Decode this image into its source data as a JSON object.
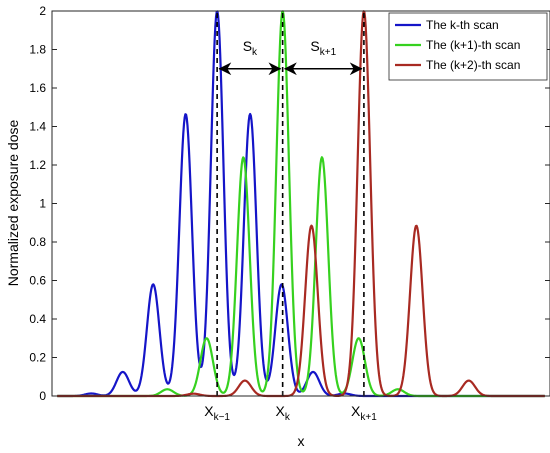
{
  "chart_data": {
    "type": "line",
    "xlabel": "x",
    "ylabel": "Normalized exposure dose",
    "ylim": [
      0,
      2
    ],
    "y_ticks": [
      "0",
      "0.2",
      "0.4",
      "0.6",
      "0.8",
      "1",
      "1.2",
      "1.4",
      "1.6",
      "1.8",
      "2"
    ],
    "y_tick_values": [
      0,
      0.2,
      0.4,
      0.6,
      0.8,
      1.0,
      1.2,
      1.4,
      1.6,
      1.8,
      2.0
    ],
    "legend_position": "top-right",
    "series": [
      {
        "name": "The k-th scan",
        "color": "#1515c8",
        "peaks": [
          {
            "x": 0.75,
            "height": 0.013
          },
          {
            "x": 1.35,
            "height": 0.125
          },
          {
            "x": 1.93,
            "height": 0.58
          },
          {
            "x": 2.55,
            "height": 1.465
          },
          {
            "x": 3.15,
            "height": 2.0
          },
          {
            "x": 3.78,
            "height": 1.465
          },
          {
            "x": 4.38,
            "height": 0.58
          },
          {
            "x": 4.98,
            "height": 0.125
          },
          {
            "x": 5.58,
            "height": 0.013
          }
        ]
      },
      {
        "name": "The (k+1)-th scan",
        "color": "#36d11f",
        "peaks": [
          {
            "x": 2.2,
            "height": 0.035
          },
          {
            "x": 2.95,
            "height": 0.3
          },
          {
            "x": 3.65,
            "height": 1.24
          },
          {
            "x": 4.4,
            "height": 2.0
          },
          {
            "x": 5.15,
            "height": 1.24
          },
          {
            "x": 5.85,
            "height": 0.3
          },
          {
            "x": 6.6,
            "height": 0.035
          }
        ]
      },
      {
        "name": "The (k+2)-th scan",
        "color": "#a82a22",
        "peaks": [
          {
            "x": 2.7,
            "height": 0.012
          },
          {
            "x": 3.68,
            "height": 0.08
          },
          {
            "x": 4.95,
            "height": 0.885
          },
          {
            "x": 5.95,
            "height": 2.0
          },
          {
            "x": 6.95,
            "height": 0.885
          },
          {
            "x": 7.95,
            "height": 0.08
          }
        ]
      }
    ],
    "reference_lines": [
      {
        "x": 3.15,
        "y_top": 2.0
      },
      {
        "x": 4.4,
        "y_top": 2.0
      },
      {
        "x": 5.95,
        "y_top": 2.0
      }
    ],
    "annotations": {
      "s_k": {
        "main": "S",
        "sub": "k",
        "from": 3.15,
        "to": 4.4,
        "y": 1.7
      },
      "s_k1": {
        "main": "S",
        "sub": "k+1",
        "from": 4.4,
        "to": 5.95,
        "y": 1.7
      }
    },
    "x_markers": [
      {
        "main": "X",
        "sub": "k−1",
        "x": 3.15
      },
      {
        "main": "X",
        "sub": "k",
        "x": 4.4
      },
      {
        "main": "X",
        "sub": "k+1",
        "x": 5.95
      }
    ]
  }
}
